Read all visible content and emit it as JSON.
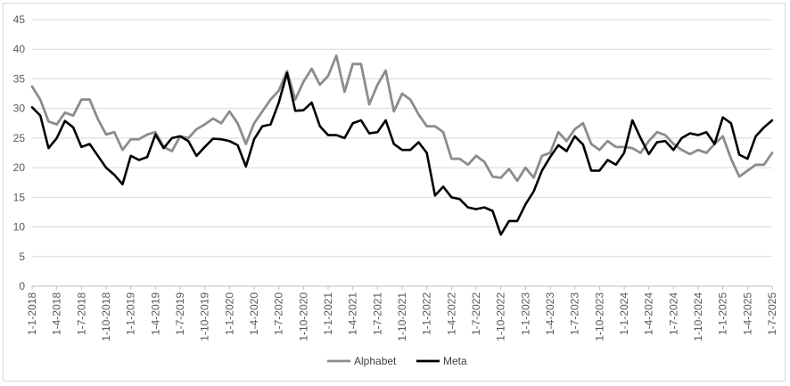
{
  "chart_data": {
    "type": "line",
    "title": "",
    "xlabel": "",
    "ylabel": "",
    "ylim": [
      0,
      45
    ],
    "yticks": [
      0,
      5,
      10,
      15,
      20,
      25,
      30,
      35,
      40,
      45
    ],
    "grid": "horizontal",
    "legend_position": "bottom",
    "x_tick_labels": [
      "1-1-2018",
      "1-4-2018",
      "1-7-2018",
      "1-10-2018",
      "1-1-2019",
      "1-4-2019",
      "1-7-2019",
      "1-10-2019",
      "1-1-2020",
      "1-4-2020",
      "1-7-2020",
      "1-10-2020",
      "1-1-2021",
      "1-4-2021",
      "1-7-2021",
      "1-10-2021",
      "1-1-2022",
      "1-4-2022",
      "1-7-2022",
      "1-10-2022",
      "1-1-2023",
      "1-4-2023",
      "1-7-2023",
      "1-10-2023",
      "1-1-2024",
      "1-4-2024",
      "1-7-2024",
      "1-10-2024",
      "1-1-2025",
      "1-4-2025",
      "1-7-2025"
    ],
    "series": [
      {
        "name": "Alphabet",
        "color": "#8c8c8c",
        "values": [
          33.7,
          31.5,
          27.8,
          27.3,
          29.3,
          28.8,
          31.5,
          31.5,
          28.2,
          25.6,
          26.0,
          23.0,
          24.8,
          24.8,
          25.6,
          26.0,
          23.5,
          22.8,
          25.3,
          25.0,
          26.5,
          27.3,
          28.3,
          27.5,
          29.5,
          27.5,
          24.0,
          27.5,
          29.5,
          31.5,
          33.0,
          36.3,
          31.5,
          34.5,
          36.7,
          34.0,
          35.5,
          38.9,
          32.8,
          37.5,
          37.5,
          30.7,
          34.0,
          36.4,
          29.5,
          32.5,
          31.5,
          29.0,
          27.0,
          27.0,
          26.0,
          21.5,
          21.5,
          20.5,
          22.0,
          21.0,
          18.5,
          18.3,
          19.8,
          17.8,
          20.0,
          18.3,
          22.0,
          22.5,
          26.0,
          24.5,
          26.5,
          27.5,
          24.0,
          23.0,
          24.5,
          23.5,
          23.5,
          23.3,
          22.5,
          24.5,
          26.0,
          25.5,
          24.0,
          23.0,
          22.3,
          23.0,
          22.5,
          24.0,
          25.3,
          21.5,
          18.5,
          19.5,
          20.5,
          20.5,
          22.5
        ]
      },
      {
        "name": "Meta",
        "color": "#000000",
        "values": [
          30.2,
          28.8,
          23.3,
          25.0,
          27.9,
          26.8,
          23.5,
          24.0,
          22.0,
          20.0,
          18.8,
          17.2,
          22.0,
          21.3,
          21.8,
          25.6,
          23.3,
          25.0,
          25.3,
          24.5,
          22.0,
          23.5,
          24.9,
          24.8,
          24.5,
          23.8,
          20.2,
          24.8,
          27.0,
          27.3,
          31.0,
          36.0,
          29.6,
          29.7,
          31.0,
          27.0,
          25.5,
          25.5,
          25.0,
          27.5,
          28.0,
          25.8,
          26.0,
          28.0,
          24.0,
          23.0,
          23.0,
          24.3,
          22.5,
          15.3,
          16.8,
          15.0,
          14.7,
          13.3,
          13.0,
          13.3,
          12.7,
          8.7,
          11.0,
          11.0,
          13.8,
          16.0,
          19.5,
          21.8,
          23.8,
          22.8,
          25.3,
          23.9,
          19.5,
          19.5,
          21.3,
          20.5,
          22.5,
          28.0,
          25.0,
          22.3,
          24.3,
          24.5,
          23.0,
          25.0,
          25.8,
          25.5,
          26.0,
          24.0,
          28.5,
          27.5,
          22.2,
          21.5,
          25.3,
          26.8,
          28.0
        ]
      }
    ]
  }
}
